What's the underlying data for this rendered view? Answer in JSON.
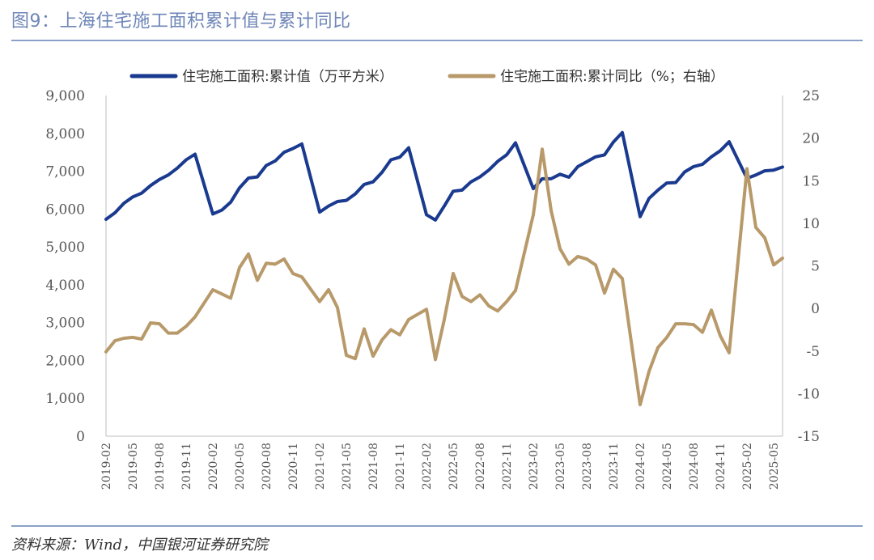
{
  "figure": {
    "title": "图9：上海住宅施工面积累计值与累计同比",
    "source": "资料来源：Wind，中国银河证券研究院"
  },
  "colors": {
    "value_series": "#1a3a8f",
    "yoy_series": "#b8996a",
    "axis": "#bfbfbf"
  },
  "chart_data": {
    "type": "line",
    "title": "图9：上海住宅施工面积累计值与累计同比",
    "legend_position": "top",
    "grid": false,
    "x": [
      "2019-02",
      "2019-03",
      "2019-04",
      "2019-05",
      "2019-06",
      "2019-07",
      "2019-08",
      "2019-09",
      "2019-10",
      "2019-11",
      "2019-12",
      "2020-01",
      "2020-02",
      "2020-03",
      "2020-04",
      "2020-05",
      "2020-06",
      "2020-07",
      "2020-08",
      "2020-09",
      "2020-10",
      "2020-11",
      "2020-12",
      "2021-01",
      "2021-02",
      "2021-03",
      "2021-04",
      "2021-05",
      "2021-06",
      "2021-07",
      "2021-08",
      "2021-09",
      "2021-10",
      "2021-11",
      "2021-12",
      "2022-01",
      "2022-02",
      "2022-03",
      "2022-04",
      "2022-05",
      "2022-06",
      "2022-07",
      "2022-08",
      "2022-09",
      "2022-10",
      "2022-11",
      "2022-12",
      "2023-01",
      "2023-02",
      "2023-03",
      "2023-04",
      "2023-05",
      "2023-06",
      "2023-07",
      "2023-08",
      "2023-09",
      "2023-10",
      "2023-11",
      "2023-12",
      "2024-01",
      "2024-02",
      "2024-03",
      "2024-04",
      "2024-05",
      "2024-06",
      "2024-07",
      "2024-08",
      "2024-09",
      "2024-10",
      "2024-11",
      "2024-12",
      "2025-01",
      "2025-02",
      "2025-03",
      "2025-04",
      "2025-05",
      "2025-06"
    ],
    "x_tick_labels": [
      "2019-02",
      "2019-05",
      "2019-08",
      "2019-11",
      "2020-02",
      "2020-05",
      "2020-08",
      "2020-11",
      "2021-02",
      "2021-05",
      "2021-08",
      "2021-11",
      "2022-02",
      "2022-05",
      "2022-08",
      "2022-11",
      "2023-02",
      "2023-05",
      "2023-08",
      "2023-11",
      "2024-02",
      "2024-05",
      "2024-08",
      "2024-11",
      "2025-02",
      "2025-05"
    ],
    "y_left": {
      "ylim": [
        0,
        9000
      ],
      "ticks": [
        "0",
        "1,000",
        "2,000",
        "3,000",
        "4,000",
        "5,000",
        "6,000",
        "7,000",
        "8,000",
        "9,000"
      ]
    },
    "y_right": {
      "ylim": [
        -15,
        25
      ],
      "ticks": [
        "-15",
        "-10",
        "-5",
        "0",
        "5",
        "10",
        "15",
        "20",
        "25"
      ]
    },
    "series": [
      {
        "name": "住宅施工面积:累计值（万平方米）",
        "axis": "left",
        "values": [
          5730,
          5900,
          6150,
          6320,
          6420,
          6620,
          6780,
          6900,
          7080,
          7300,
          7450,
          null,
          5870,
          5970,
          6180,
          6560,
          6820,
          6850,
          7150,
          7270,
          7500,
          7600,
          7720,
          null,
          5920,
          6080,
          6200,
          6230,
          6400,
          6650,
          6720,
          6970,
          7300,
          7370,
          7620,
          null,
          5850,
          5710,
          6080,
          6470,
          6500,
          6720,
          6850,
          7030,
          7260,
          7430,
          7750,
          null,
          6540,
          6800,
          6800,
          6920,
          6840,
          7120,
          7250,
          7380,
          7430,
          7770,
          8020,
          null,
          5800,
          6280,
          6500,
          6690,
          6700,
          6980,
          7120,
          7180,
          7380,
          7540,
          7780,
          null,
          6810,
          6900,
          7010,
          7030,
          7110
        ]
      },
      {
        "name": "住宅施工面积:累计同比（%；右轴）",
        "axis": "right",
        "values": [
          -5.1,
          -3.8,
          -3.5,
          -3.4,
          -3.6,
          -1.7,
          -1.8,
          -2.9,
          -2.9,
          -2.1,
          -1.0,
          null,
          2.2,
          1.7,
          1.2,
          4.8,
          6.4,
          3.3,
          5.3,
          5.2,
          5.8,
          4.1,
          3.7,
          null,
          0.8,
          2.2,
          0.1,
          -5.5,
          -5.9,
          -2.4,
          -5.6,
          -3.7,
          -2.5,
          -3.1,
          -1.3,
          null,
          -0.1,
          -6.0,
          -1.3,
          4.1,
          1.4,
          0.8,
          1.6,
          0.3,
          -0.3,
          0.8,
          2.1,
          null,
          11.0,
          18.7,
          11.5,
          7.0,
          5.2,
          6.1,
          5.8,
          5.1,
          1.8,
          4.6,
          3.5,
          null,
          -11.3,
          -7.4,
          -4.6,
          -3.4,
          -1.8,
          -1.8,
          -1.9,
          -2.8,
          -0.2,
          -3.2,
          -5.2,
          null,
          16.4,
          9.5,
          8.3,
          5.1,
          5.9
        ]
      }
    ]
  }
}
